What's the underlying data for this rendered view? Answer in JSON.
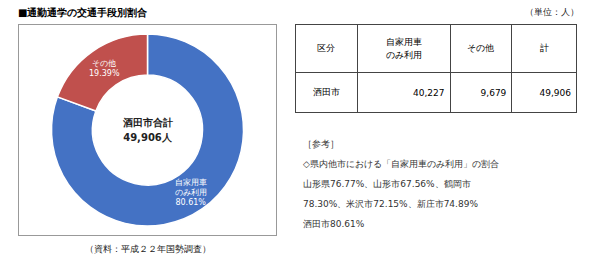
{
  "chart_data": {
    "type": "pie",
    "title": "■通勤通学の交通手段別割合",
    "categories": [
      "自家用車\nのみ利用",
      "その他"
    ],
    "values": [
      80.61,
      19.39
    ],
    "value_labels": [
      "80.61%",
      "19.39%"
    ],
    "data_labels": true,
    "colors": [
      "#4472C4",
      "#C0504D"
    ],
    "annotations": [
      "酒田市合計",
      "49,906人"
    ],
    "unit_label": "（単位：人）",
    "source": "（資料：平成２２年国勢調査）",
    "table": {
      "headers": [
        "区分",
        "自家用車\nのみ利用",
        "その他",
        "計"
      ],
      "rows": [
        [
          "酒田市",
          "40,227",
          "9,679",
          "49,906"
        ]
      ]
    },
    "comment": [
      "［参考］",
      "◇県内他市における「自家用車のみ利用」の割合",
      "山形県76.77%、山形市67.56%、鶴岡市",
      "78.30%、米沢市72.15%、新庄市74.89%",
      "酒田市80.61%"
    ]
  }
}
